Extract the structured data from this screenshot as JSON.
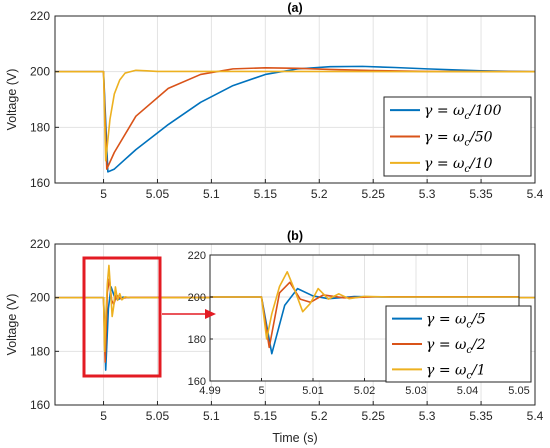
{
  "chart_data": [
    {
      "type": "line",
      "title": "(a)",
      "xlabel": "",
      "ylabel": "Voltage (V)",
      "xlim": [
        4.955,
        5.4
      ],
      "ylim": [
        160,
        220
      ],
      "xticks": [
        "5",
        "5.05",
        "5.1",
        "5.15",
        "5.2",
        "5.25",
        "5.3",
        "5.35",
        "5.4"
      ],
      "yticks": [
        "160",
        "180",
        "200",
        "220"
      ],
      "grid": true,
      "legend": "bottom-right",
      "series": [
        {
          "name": "γ = ω_c/100",
          "color": "#0072BD",
          "x": [
            4.955,
            5.0,
            5.004,
            5.01,
            5.03,
            5.06,
            5.09,
            5.12,
            5.15,
            5.18,
            5.21,
            5.24,
            5.27,
            5.3,
            5.35,
            5.4
          ],
          "y": [
            200,
            200,
            164,
            165,
            172,
            181,
            189,
            195,
            199,
            201,
            201.8,
            201.9,
            201.5,
            201,
            200.3,
            200
          ]
        },
        {
          "name": "γ = ω_c/50",
          "color": "#D95319",
          "x": [
            4.955,
            5.0,
            5.003,
            5.01,
            5.03,
            5.06,
            5.09,
            5.12,
            5.15,
            5.18,
            5.21,
            5.25,
            5.3,
            5.4
          ],
          "y": [
            200,
            200,
            165,
            171,
            184,
            194,
            199,
            201,
            201.4,
            201.2,
            200.8,
            200.4,
            200.1,
            200
          ]
        },
        {
          "name": "γ = ω_c/10",
          "color": "#EDB120",
          "x": [
            4.955,
            5.0,
            5.002,
            5.006,
            5.01,
            5.015,
            5.02,
            5.03,
            5.04,
            5.05,
            5.4
          ],
          "y": [
            200,
            200,
            168,
            183,
            192,
            197,
            199.5,
            200.5,
            200.3,
            200.1,
            200
          ]
        }
      ]
    },
    {
      "type": "line",
      "title": "(b)",
      "xlabel": "Time (s)",
      "ylabel": "Voltage (V)",
      "xlim": [
        4.955,
        5.4
      ],
      "ylim": [
        160,
        220
      ],
      "xticks": [
        "5",
        "5.05",
        "5.1",
        "5.15",
        "5.2",
        "5.25",
        "5.3",
        "5.35",
        "5.4"
      ],
      "yticks": [
        "160",
        "180",
        "200",
        "220"
      ],
      "grid": true,
      "legend": "bottom-right",
      "series": [
        {
          "name": "γ = ω_c/5",
          "color": "#0072BD",
          "x": [
            4.955,
            5.0,
            5.002,
            5.0045,
            5.007,
            5.01,
            5.013,
            5.018,
            5.025,
            5.4
          ],
          "y": [
            200,
            200,
            173,
            196,
            204,
            200.5,
            199.2,
            200.2,
            200,
            200
          ]
        },
        {
          "name": "γ = ω_c/2",
          "color": "#D95319",
          "x": [
            4.955,
            5.0,
            5.0015,
            5.0035,
            5.0055,
            5.0075,
            5.0095,
            5.012,
            5.016,
            5.022,
            5.4
          ],
          "y": [
            200,
            200,
            176,
            202,
            207,
            199,
            197.5,
            201,
            199.6,
            200.1,
            200
          ]
        },
        {
          "name": "γ = ω_c/1",
          "color": "#EDB120",
          "x": [
            4.955,
            5.0,
            5.001,
            5.002,
            5.0035,
            5.005,
            5.0065,
            5.008,
            5.0095,
            5.011,
            5.013,
            5.015,
            5.017,
            5.02,
            5.025,
            5.4
          ],
          "y": [
            200,
            200,
            180,
            192,
            205,
            212,
            203,
            193,
            197,
            204,
            199,
            201.5,
            199.2,
            200.3,
            200,
            200
          ]
        }
      ],
      "inset": {
        "xlim": [
          4.99,
          5.05
        ],
        "ylim": [
          160,
          220
        ],
        "xticks": [
          "4.99",
          "5",
          "5.01",
          "5.02",
          "5.03",
          "5.04",
          "5.05"
        ],
        "yticks": [
          "160",
          "180",
          "200",
          "220"
        ]
      }
    }
  ]
}
